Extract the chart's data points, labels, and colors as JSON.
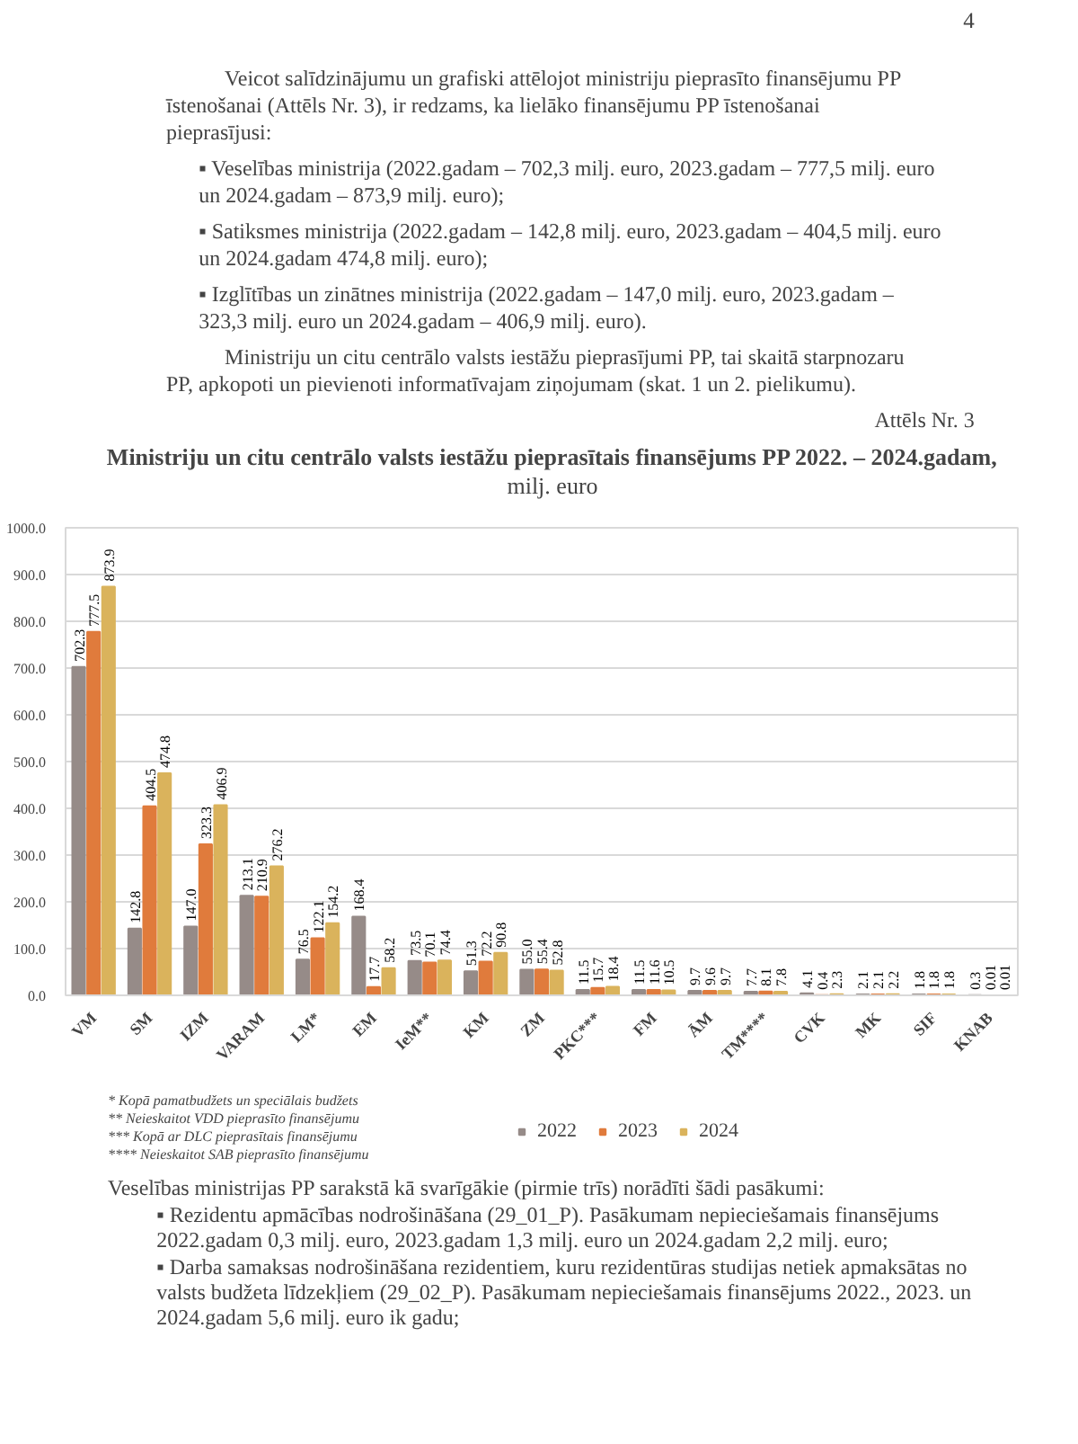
{
  "chart_data": {
    "type": "bar",
    "title": "Ministriju un citu centrālo valsts iestāžu pieprasītais finansējums PP 2022. – 2024.gadam,",
    "subtitle": "milj. euro",
    "categories": [
      "VM",
      "SM",
      "IZM",
      "VARAM",
      "LM*",
      "EM",
      "IeM**",
      "KM",
      "ZM",
      "PKC***",
      "FM",
      "ĀM",
      "TM****",
      "CVK",
      "MK",
      "SIF",
      "KNAB"
    ],
    "series": [
      {
        "name": "2022",
        "color": "#968b88",
        "values": [
          702.3,
          142.8,
          147.0,
          213.1,
          76.5,
          168.4,
          73.5,
          51.3,
          55.0,
          11.5,
          11.5,
          9.7,
          7.7,
          4.1,
          2.1,
          1.8,
          0.3
        ],
        "value_labels": [
          "702.3",
          "142.8",
          "147.0",
          "213.1",
          "76.5",
          "168.4",
          "73.5",
          "51.3",
          "55.0",
          "11.5",
          "11.5",
          "9.7",
          "7.7",
          "4.1",
          "2.1",
          "1.8",
          "0.3"
        ]
      },
      {
        "name": "2023",
        "color": "#e07b3c",
        "values": [
          777.5,
          404.5,
          323.3,
          210.9,
          122.1,
          17.7,
          70.1,
          72.2,
          55.4,
          15.7,
          11.6,
          9.6,
          8.1,
          0.4,
          2.1,
          1.8,
          0.01
        ],
        "value_labels": [
          "777.5",
          "404.5",
          "323.3",
          "210.9",
          "122.1",
          "17.7",
          "70.1",
          "72.2",
          "55.4",
          "15.7",
          "11.6",
          "9.6",
          "8.1",
          "0.4",
          "2.1",
          "1.8",
          "0.01"
        ]
      },
      {
        "name": "2024",
        "color": "#dab35c",
        "values": [
          873.9,
          474.8,
          406.9,
          276.2,
          154.2,
          58.2,
          74.4,
          90.8,
          52.8,
          18.4,
          10.5,
          9.7,
          7.8,
          2.3,
          2.2,
          1.8,
          0.01
        ],
        "value_labels": [
          "873.9",
          "474.8",
          "406.9",
          "276.2",
          "154.2",
          "58.2",
          "74.4",
          "90.8",
          "52.8",
          "18.4",
          "10.5",
          "9.7",
          "7.8",
          "2.3",
          "2.2",
          "1.8",
          "0.01"
        ]
      }
    ],
    "ylim": [
      0,
      1000
    ],
    "yticks": [
      {
        "value": 0,
        "label": "0.0"
      },
      {
        "value": 100,
        "label": "100.0"
      },
      {
        "value": 200,
        "label": "200.0"
      },
      {
        "value": 300,
        "label": "300.0"
      },
      {
        "value": 400,
        "label": "400.0"
      },
      {
        "value": 500,
        "label": "500.0"
      },
      {
        "value": 600,
        "label": "600.0"
      },
      {
        "value": 700,
        "label": "700.0"
      },
      {
        "value": 800,
        "label": "800.0"
      },
      {
        "value": 900,
        "label": "900.0"
      },
      {
        "value": 1000,
        "label": "1000.0"
      }
    ],
    "grid": "y",
    "legend": "bottom",
    "annotations": [
      "4",
      "Veicot salīdzinājumu un grafiski attēlojot ministriju pieprasīto finansējumu PP īstenošanai (Attēls Nr. 3), ir redzams, ka lielāko finansējumu PP īstenošanai pieprasījusi:",
      "▪ Veselības ministrija (2022.gadam – 702,3 milj. euro, 2023.gadam – 777,5 milj. euro un 2024.gadam – 873,9 milj. euro);",
      "▪ Satiksmes ministrija (2022.gadam – 142,8 milj. euro, 2023.gadam – 404,5 milj. euro un 2024.gadam 474,8 milj. euro);",
      "▪ Izglītības un zinātnes ministrija (2022.gadam – 147,0 milj. euro, 2023.gadam – 323,3 milj. euro un 2024.gadam – 406,9 milj. euro).",
      "Ministriju un citu centrālo valsts iestāžu pieprasījumi PP, tai skaitā starpnozaru PP, apkopoti un pievienoti informatīvajam ziņojumam (skat. 1 un 2. pielikumu).",
      "Attēls Nr. 3",
      "* Kopā pamatbudžets un speciālais budžets",
      "** Neieskaitot VDD pieprasīto finansējumu",
      "*** Kopā ar DLC pieprasītais finansējumu",
      "**** Neieskaitot SAB pieprasīto finansējumu",
      "Veselības ministrijas PP sarakstā kā svarīgākie (pirmie trīs) norādīti šādi pasākumi:",
      "▪ Rezidentu apmācības nodrošināšana (29_01_P). Pasākumam nepieciešamais finansējums 2022.gadam 0,3 milj. euro, 2023.gadam 1,3 milj. euro un 2024.gadam 2,2 milj. euro;",
      "▪ Darba samaksas nodrošināšana rezidentiem, kuru rezidentūras studijas netiek apmaksātas no valsts budžeta līdzekļiem (29_02_P). Pasākumam nepieciešamais finansējums 2022., 2023. un 2024.gadam 5,6 milj. euro ik gadu;"
    ]
  }
}
